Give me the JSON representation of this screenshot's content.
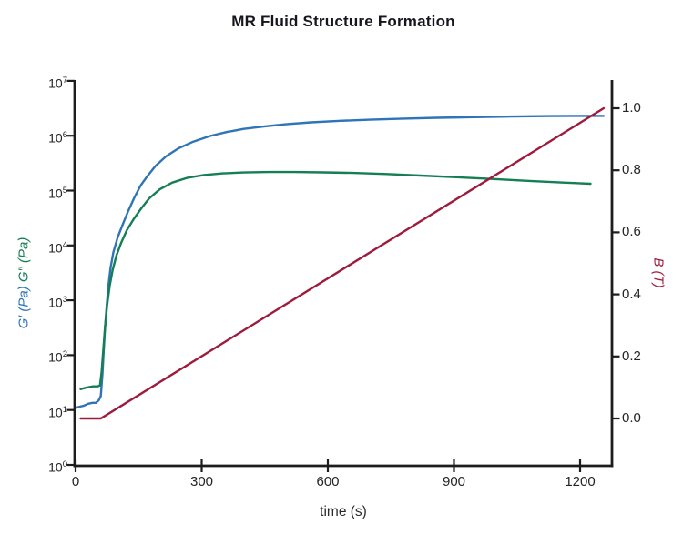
{
  "chart_data": {
    "type": "line",
    "title": "MR Fluid Structure Formation",
    "xlabel": "time (s)",
    "x_axis": {
      "ticks": [
        0,
        300,
        600,
        900,
        1200
      ],
      "lim": [
        0,
        1276
      ]
    },
    "left_axis": {
      "label_g_prime": "G′ (Pa)",
      "label_g_double_prime": "G″ (Pa)",
      "scale": "log",
      "tick_exponents": [
        0,
        1,
        2,
        3,
        4,
        5,
        6,
        7
      ],
      "lim": [
        1,
        10000000
      ]
    },
    "right_axis": {
      "label": "B (T)",
      "scale": "linear",
      "ticks": [
        "0.0",
        "0.2",
        "0.4",
        "0.6",
        "0.8",
        "1.0"
      ],
      "lim": [
        0,
        1.0
      ]
    },
    "axis_color": "#1d1d1d",
    "series": [
      {
        "name": "G-prime-storage-modulus",
        "display": "G′",
        "axis": "left",
        "color": "#2e74b6",
        "points": [
          [
            2,
            11
          ],
          [
            10,
            11.5
          ],
          [
            20,
            12
          ],
          [
            30,
            13
          ],
          [
            40,
            13.5
          ],
          [
            48,
            13.5
          ],
          [
            55,
            15
          ],
          [
            60,
            18
          ],
          [
            64,
            45
          ],
          [
            67,
            120
          ],
          [
            70,
            300
          ],
          [
            74,
            800
          ],
          [
            78,
            1800
          ],
          [
            83,
            3800
          ],
          [
            90,
            7500
          ],
          [
            100,
            14000
          ],
          [
            112,
            24000
          ],
          [
            125,
            42000
          ],
          [
            140,
            75000
          ],
          [
            155,
            125000
          ],
          [
            170,
            180000
          ],
          [
            190,
            280000
          ],
          [
            215,
            420000
          ],
          [
            245,
            590000
          ],
          [
            280,
            780000
          ],
          [
            320,
            990000
          ],
          [
            360,
            1170000
          ],
          [
            400,
            1330000
          ],
          [
            450,
            1480000
          ],
          [
            500,
            1620000
          ],
          [
            560,
            1750000
          ],
          [
            630,
            1870000
          ],
          [
            700,
            1960000
          ],
          [
            780,
            2050000
          ],
          [
            860,
            2120000
          ],
          [
            950,
            2180000
          ],
          [
            1040,
            2240000
          ],
          [
            1130,
            2280000
          ],
          [
            1200,
            2300000
          ],
          [
            1256,
            2300000
          ]
        ]
      },
      {
        "name": "G-double-prime-loss-modulus",
        "display": "G″",
        "axis": "left",
        "color": "#157e54",
        "points": [
          [
            12,
            24
          ],
          [
            20,
            25
          ],
          [
            30,
            26
          ],
          [
            42,
            27
          ],
          [
            52,
            27
          ],
          [
            58,
            28
          ],
          [
            62,
            50
          ],
          [
            66,
            130
          ],
          [
            70,
            320
          ],
          [
            75,
            800
          ],
          [
            81,
            1800
          ],
          [
            88,
            3500
          ],
          [
            97,
            6500
          ],
          [
            108,
            11000
          ],
          [
            122,
            19000
          ],
          [
            138,
            30000
          ],
          [
            155,
            46000
          ],
          [
            175,
            72000
          ],
          [
            200,
            105000
          ],
          [
            230,
            140000
          ],
          [
            265,
            170000
          ],
          [
            305,
            192000
          ],
          [
            350,
            206000
          ],
          [
            400,
            214000
          ],
          [
            460,
            218000
          ],
          [
            520,
            218000
          ],
          [
            590,
            215000
          ],
          [
            660,
            210000
          ],
          [
            740,
            200000
          ],
          [
            820,
            188000
          ],
          [
            900,
            176000
          ],
          [
            990,
            163000
          ],
          [
            1080,
            150000
          ],
          [
            1160,
            140000
          ],
          [
            1225,
            133000
          ]
        ]
      },
      {
        "name": "B-magnetic-field-ramp",
        "display": "B",
        "axis": "right",
        "color": "#9d1c3d",
        "points": [
          [
            12,
            0.0
          ],
          [
            60,
            0.0
          ],
          [
            1256,
            1.0
          ]
        ]
      }
    ]
  }
}
